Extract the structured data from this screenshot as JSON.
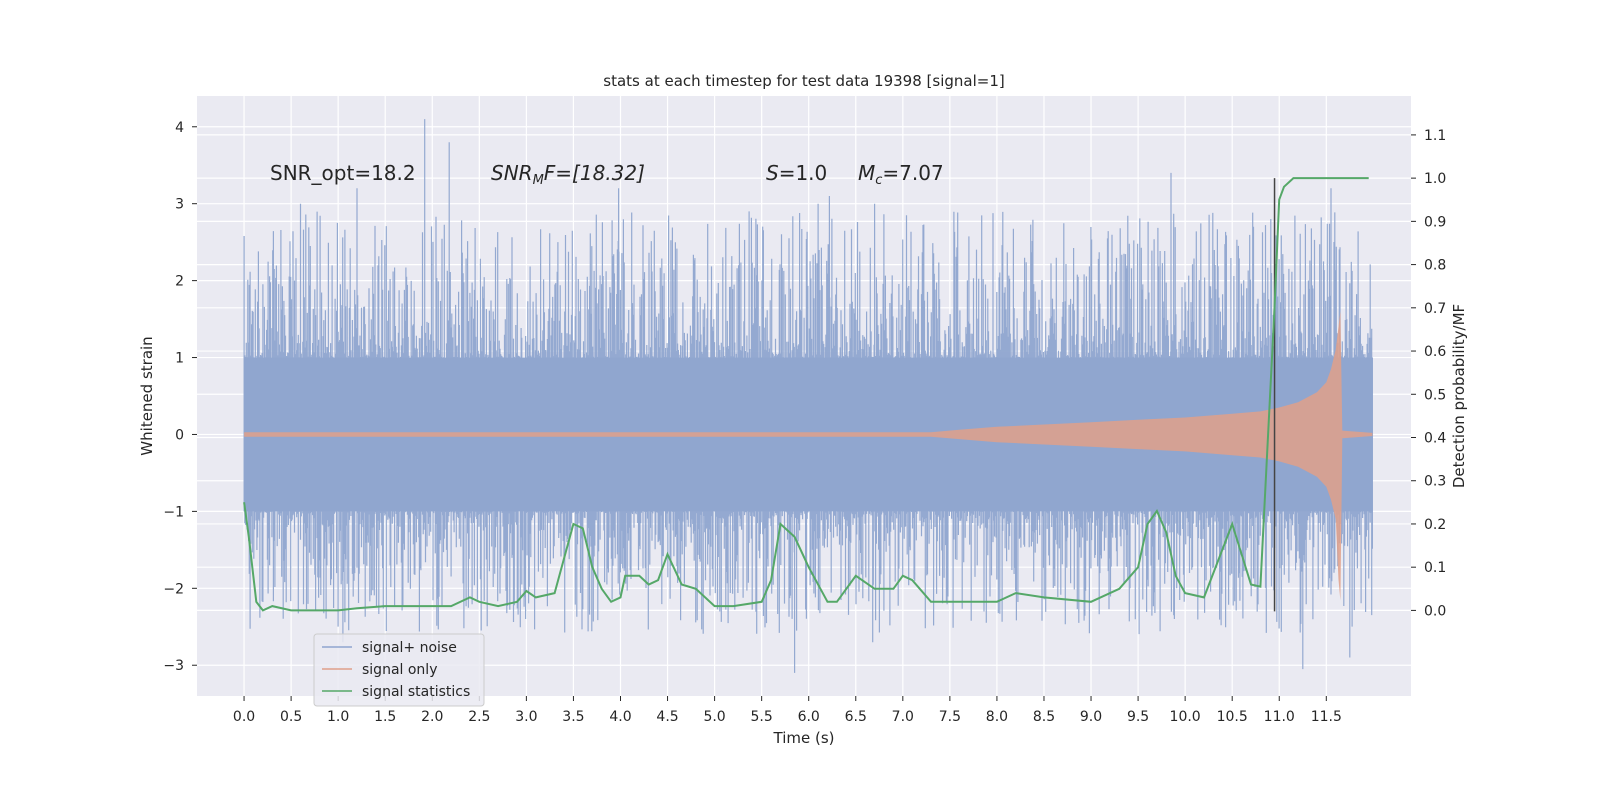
{
  "chart_data": {
    "type": "line",
    "title": "stats at each timestep for test data 19398 [signal=1]",
    "xlabel": "Time (s)",
    "ylabel_left": "Whitened strain",
    "ylabel_right": "Detection probability/MF",
    "xlim": [
      -0.5,
      12.4
    ],
    "ylim_left": [
      -3.4,
      4.4
    ],
    "ylim_right": [
      -0.198,
      1.19
    ],
    "x_ticks": [
      "0.0",
      "0.5",
      "1.0",
      "1.5",
      "2.0",
      "2.5",
      "3.0",
      "3.5",
      "4.0",
      "4.5",
      "5.0",
      "5.5",
      "6.0",
      "6.5",
      "7.0",
      "7.5",
      "8.0",
      "8.5",
      "9.0",
      "9.5",
      "10.0",
      "10.5",
      "11.0",
      "11.5"
    ],
    "y_ticks_left": [
      "−3",
      "−2",
      "−1",
      "0",
      "1",
      "2",
      "3",
      "4"
    ],
    "y_ticks_right": [
      "0.0",
      "0.1",
      "0.2",
      "0.3",
      "0.4",
      "0.5",
      "0.6",
      "0.7",
      "0.8",
      "0.9",
      "1.0",
      "1.1"
    ],
    "grid": true,
    "legend_position": "lower-left",
    "detection_time_marker": 10.95,
    "annotations": [
      {
        "prefix": "SNR_opt=18.2",
        "italic": "",
        "sub": "",
        "suffix": ""
      },
      {
        "prefix": "",
        "italic": "SNR",
        "sub": "M",
        "suffix": "F=[18.32]"
      },
      {
        "prefix": "",
        "italic": "S",
        "sub": "",
        "suffix": "=1.0"
      },
      {
        "prefix": "",
        "italic": "M",
        "sub": "c",
        "suffix": "=7.07"
      }
    ],
    "series": [
      {
        "name": "signal+ noise",
        "color": "#8fa5cf",
        "axis": "left",
        "x_range": [
          0.0,
          11.99
        ],
        "envelope_max": 4.1,
        "envelope_min": -3.1,
        "peaks": [
          [
            1.92,
            4.1
          ],
          [
            2.18,
            3.8
          ],
          [
            9.85,
            3.4
          ],
          [
            1.2,
            3.2
          ],
          [
            3.98,
            3.2
          ],
          [
            6.7,
            3.0
          ],
          [
            11.55,
            3.2
          ],
          [
            6.1,
            3.0
          ],
          [
            6.22,
            3.1
          ],
          [
            0.6,
            3.0
          ],
          [
            5.85,
            -3.1
          ],
          [
            11.25,
            -3.05
          ],
          [
            11.75,
            -2.9
          ],
          [
            1.05,
            -2.7
          ],
          [
            6.68,
            -2.7
          ]
        ]
      },
      {
        "name": "signal only",
        "color": "#e0a08a",
        "axis": "left",
        "x": [
          0.0,
          7.3,
          7.6,
          8.0,
          8.5,
          9.0,
          9.5,
          10.0,
          10.5,
          10.8,
          11.0,
          11.2,
          11.4,
          11.5,
          11.55,
          11.6,
          11.63,
          11.65,
          11.67,
          11.99
        ],
        "amplitude": [
          0.03,
          0.03,
          0.06,
          0.1,
          0.13,
          0.16,
          0.19,
          0.22,
          0.27,
          0.3,
          0.35,
          0.42,
          0.55,
          0.68,
          0.85,
          1.1,
          1.4,
          1.6,
          0.05,
          0.02
        ]
      },
      {
        "name": "signal statistics",
        "color": "#55a868",
        "axis": "right",
        "x": [
          0.0,
          0.05,
          0.13,
          0.2,
          0.3,
          0.5,
          0.8,
          1.0,
          1.2,
          1.5,
          1.8,
          2.0,
          2.2,
          2.4,
          2.5,
          2.7,
          2.9,
          3.0,
          3.1,
          3.3,
          3.5,
          3.6,
          3.7,
          3.8,
          3.9,
          4.0,
          4.05,
          4.2,
          4.3,
          4.4,
          4.5,
          4.65,
          4.8,
          5.0,
          5.2,
          5.5,
          5.6,
          5.7,
          5.85,
          6.0,
          6.2,
          6.3,
          6.5,
          6.7,
          6.9,
          7.0,
          7.1,
          7.3,
          7.6,
          8.0,
          8.2,
          8.5,
          9.0,
          9.3,
          9.5,
          9.6,
          9.7,
          9.8,
          9.9,
          10.0,
          10.2,
          10.5,
          10.7,
          10.8,
          10.95,
          11.0,
          11.05,
          11.15,
          11.3,
          11.5,
          11.6,
          11.7,
          11.95
        ],
        "y": [
          0.25,
          0.17,
          0.02,
          0.0,
          0.01,
          0.0,
          0.0,
          0.0,
          0.005,
          0.01,
          0.01,
          0.01,
          0.01,
          0.03,
          0.02,
          0.01,
          0.02,
          0.045,
          0.03,
          0.04,
          0.2,
          0.19,
          0.1,
          0.05,
          0.02,
          0.03,
          0.08,
          0.08,
          0.06,
          0.07,
          0.13,
          0.06,
          0.05,
          0.01,
          0.01,
          0.02,
          0.07,
          0.2,
          0.17,
          0.1,
          0.02,
          0.02,
          0.08,
          0.05,
          0.05,
          0.08,
          0.07,
          0.02,
          0.02,
          0.02,
          0.04,
          0.03,
          0.02,
          0.05,
          0.1,
          0.2,
          0.23,
          0.18,
          0.08,
          0.04,
          0.03,
          0.2,
          0.06,
          0.055,
          0.7,
          0.95,
          0.98,
          1.0,
          1.0,
          1.0,
          1.0,
          1.0,
          1.0
        ]
      }
    ]
  }
}
